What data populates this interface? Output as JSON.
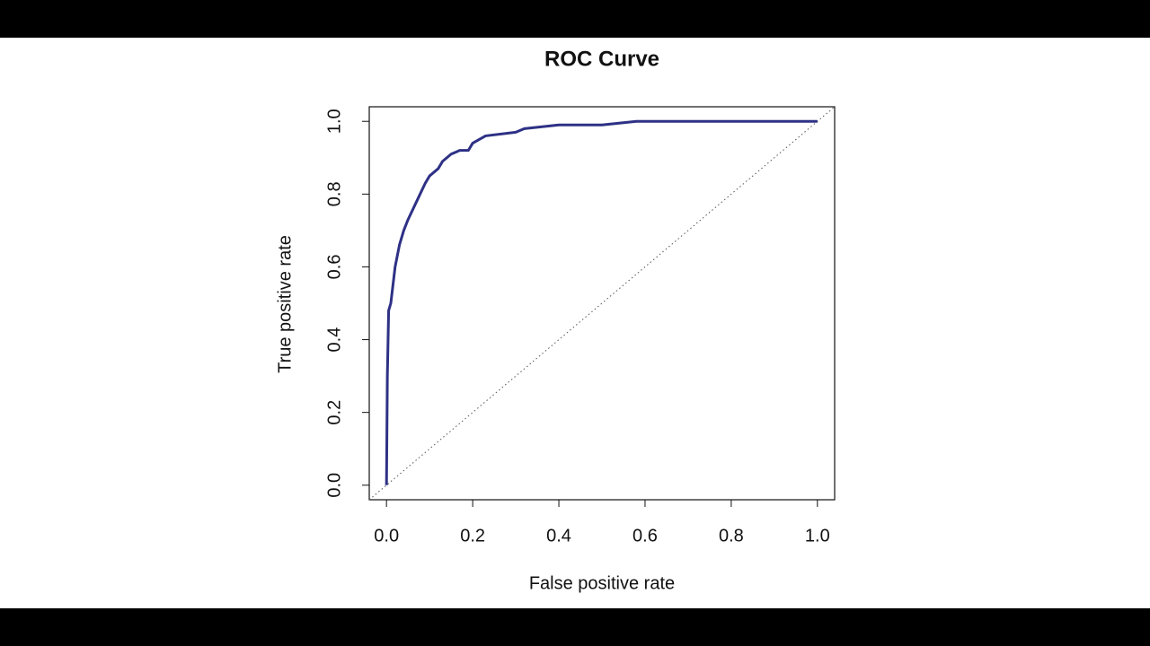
{
  "chart_data": {
    "type": "line",
    "title": "ROC Curve",
    "x_label": "False positive rate",
    "y_label": "True positive rate",
    "xlim": [
      -0.04,
      1.04
    ],
    "ylim": [
      -0.04,
      1.04
    ],
    "xticks": [
      {
        "value": 0,
        "label": "0.0"
      },
      0.2,
      0.4,
      0.6,
      0.8,
      {
        "value": 1,
        "label": "1.0"
      }
    ],
    "yticks": [
      {
        "value": 0,
        "label": "0.0"
      },
      0.2,
      0.4,
      0.6,
      0.8,
      {
        "value": 1,
        "label": "1.0"
      }
    ],
    "reference_diagonal": true,
    "series": [
      {
        "color": "#2e3185",
        "x": [
          0,
          0.002,
          0.005,
          0.01,
          0.02,
          0.03,
          0.04,
          0.05,
          0.07,
          0.09,
          0.1,
          0.12,
          0.13,
          0.15,
          0.17,
          0.19,
          0.2,
          0.23,
          0.3,
          0.32,
          0.4,
          0.5,
          0.58,
          1.0
        ],
        "values": [
          0,
          0.3,
          0.48,
          0.5,
          0.6,
          0.66,
          0.7,
          0.73,
          0.78,
          0.83,
          0.85,
          0.87,
          0.89,
          0.91,
          0.92,
          0.92,
          0.94,
          0.96,
          0.97,
          0.98,
          0.99,
          0.99,
          1.0,
          1.0
        ]
      }
    ]
  }
}
